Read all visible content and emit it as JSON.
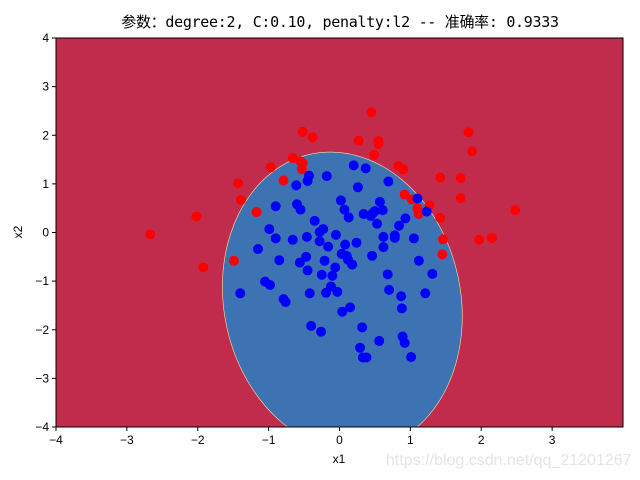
{
  "title": "参数：degree:2, C:0.10, penalty:l2 -- 准确率: 0.9333",
  "watermark": "https://blog.csdn.net/qq_21201267",
  "colors": {
    "background_region": "#c22c4c",
    "decision_region": "#3e73b3",
    "class_outer": "#ff0000",
    "class_inner": "#0000ff"
  },
  "axes": {
    "xlabel": "x1",
    "ylabel": "x2",
    "xticks": [
      "-4",
      "-3",
      "-2",
      "-1",
      "0",
      "1",
      "2",
      "3"
    ],
    "yticks": [
      "4",
      "3",
      "2",
      "1",
      "0",
      "-1",
      "-2",
      "-3",
      "-4"
    ]
  },
  "chart_data": {
    "type": "scatter",
    "title": "参数：degree:2, C:0.10, penalty:l2 -- 准确率: 0.9333",
    "xlabel": "x1",
    "ylabel": "x2",
    "xlim": [
      -4,
      4
    ],
    "ylim": [
      -4,
      4
    ],
    "grid": false,
    "background": "filled contour of logistic regression decision regions (red outside, blue inside ellipse)",
    "decision_boundary": {
      "shape": "ellipse",
      "center": [
        0.04,
        -1.42
      ],
      "rx": 1.67,
      "ry": 3.1,
      "rotation_deg": -12
    },
    "series": [
      {
        "name": "class 0 (outer)",
        "color": "#ff0000",
        "points": [
          [
            -2.67,
            -0.04
          ],
          [
            -2.02,
            0.33
          ],
          [
            -1.92,
            -0.72
          ],
          [
            -1.49,
            -0.58
          ],
          [
            -1.43,
            1.01
          ],
          [
            -1.39,
            0.67
          ],
          [
            -1.17,
            0.42
          ],
          [
            -0.97,
            1.34
          ],
          [
            -0.79,
            1.07
          ],
          [
            -0.66,
            1.53
          ],
          [
            -0.55,
            1.46
          ],
          [
            -0.53,
            1.3
          ],
          [
            -0.52,
            2.07
          ],
          [
            -0.38,
            1.96
          ],
          [
            -0.52,
            1.43
          ],
          [
            0.27,
            1.89
          ],
          [
            0.45,
            2.47
          ],
          [
            0.49,
            1.6
          ],
          [
            0.55,
            1.82
          ],
          [
            0.55,
            1.88
          ],
          [
            0.83,
            1.37
          ],
          [
            0.9,
            1.3
          ],
          [
            0.92,
            0.78
          ],
          [
            1.1,
            0.5
          ],
          [
            1.12,
            0.38
          ],
          [
            1.27,
            0.56
          ],
          [
            1.42,
            1.13
          ],
          [
            1.42,
            0.3
          ],
          [
            1.45,
            -0.45
          ],
          [
            1.46,
            -0.14
          ],
          [
            1.71,
            0.71
          ],
          [
            1.71,
            1.12
          ],
          [
            1.82,
            2.06
          ],
          [
            1.87,
            1.67
          ],
          [
            1.97,
            -0.15
          ],
          [
            2.15,
            -0.11
          ],
          [
            2.48,
            0.46
          ],
          [
            1.02,
            0.68
          ]
        ]
      },
      {
        "name": "class 1 (inner)",
        "color": "#0000ff",
        "points": [
          [
            -1.4,
            -1.25
          ],
          [
            -1.15,
            -0.34
          ],
          [
            -1.05,
            -1.01
          ],
          [
            -0.98,
            -1.08
          ],
          [
            -0.99,
            0.07
          ],
          [
            -0.9,
            0.54
          ],
          [
            -0.9,
            -0.12
          ],
          [
            -0.85,
            -0.57
          ],
          [
            -0.79,
            -1.37
          ],
          [
            -0.76,
            -1.43
          ],
          [
            -0.66,
            -0.15
          ],
          [
            -0.61,
            0.97
          ],
          [
            -0.6,
            0.58
          ],
          [
            -0.55,
            0.47
          ],
          [
            -0.56,
            -0.62
          ],
          [
            -0.47,
            -0.5
          ],
          [
            -0.46,
            -0.09
          ],
          [
            -0.45,
            -0.78
          ],
          [
            -0.45,
            1.06
          ],
          [
            -0.42,
            -1.25
          ],
          [
            -0.43,
            1.17
          ],
          [
            -0.4,
            -1.92
          ],
          [
            -0.35,
            0.24
          ],
          [
            -0.28,
            0.01
          ],
          [
            -0.28,
            -0.18
          ],
          [
            -0.26,
            -2.04
          ],
          [
            -0.25,
            -0.87
          ],
          [
            -0.23,
            0.07
          ],
          [
            -0.21,
            -0.58
          ],
          [
            -0.19,
            -1.24
          ],
          [
            -0.18,
            1.16
          ],
          [
            -0.16,
            -0.29
          ],
          [
            -0.12,
            -1.11
          ],
          [
            -0.1,
            -0.89
          ],
          [
            -0.05,
            -0.05
          ],
          [
            -0.06,
            -0.72
          ],
          [
            -0.03,
            -1.22
          ],
          [
            0.02,
            0.66
          ],
          [
            0.03,
            -0.44
          ],
          [
            0.04,
            -1.63
          ],
          [
            0.07,
            0.47
          ],
          [
            0.08,
            -0.25
          ],
          [
            0.1,
            -0.48
          ],
          [
            0.12,
            -0.56
          ],
          [
            0.13,
            0.31
          ],
          [
            0.15,
            -1.54
          ],
          [
            0.18,
            -0.66
          ],
          [
            0.2,
            1.38
          ],
          [
            0.24,
            -0.21
          ],
          [
            0.26,
            0.93
          ],
          [
            0.29,
            -2.37
          ],
          [
            0.32,
            -1.95
          ],
          [
            0.33,
            -2.57
          ],
          [
            0.38,
            -2.57
          ],
          [
            0.34,
            0.38
          ],
          [
            0.37,
            1.32
          ],
          [
            0.44,
            0.34
          ],
          [
            0.46,
            -0.48
          ],
          [
            0.47,
            0.4
          ],
          [
            0.5,
            0.44
          ],
          [
            0.53,
            0.18
          ],
          [
            0.56,
            -2.23
          ],
          [
            0.57,
            0.63
          ],
          [
            0.61,
            0.46
          ],
          [
            0.62,
            -0.09
          ],
          [
            0.62,
            -0.3
          ],
          [
            0.68,
            -0.86
          ],
          [
            0.7,
            -1.18
          ],
          [
            0.69,
            1.05
          ],
          [
            0.78,
            -0.06
          ],
          [
            0.78,
            -0.11
          ],
          [
            0.84,
            0.14
          ],
          [
            0.87,
            -1.31
          ],
          [
            0.88,
            -1.56
          ],
          [
            0.89,
            -2.14
          ],
          [
            0.92,
            -2.27
          ],
          [
            0.93,
            0.29
          ],
          [
            1.01,
            -2.56
          ],
          [
            1.05,
            -0.12
          ],
          [
            1.1,
            0.7
          ],
          [
            1.12,
            -0.58
          ],
          [
            1.21,
            -1.25
          ],
          [
            1.23,
            0.43
          ],
          [
            1.31,
            -0.85
          ]
        ]
      }
    ]
  }
}
